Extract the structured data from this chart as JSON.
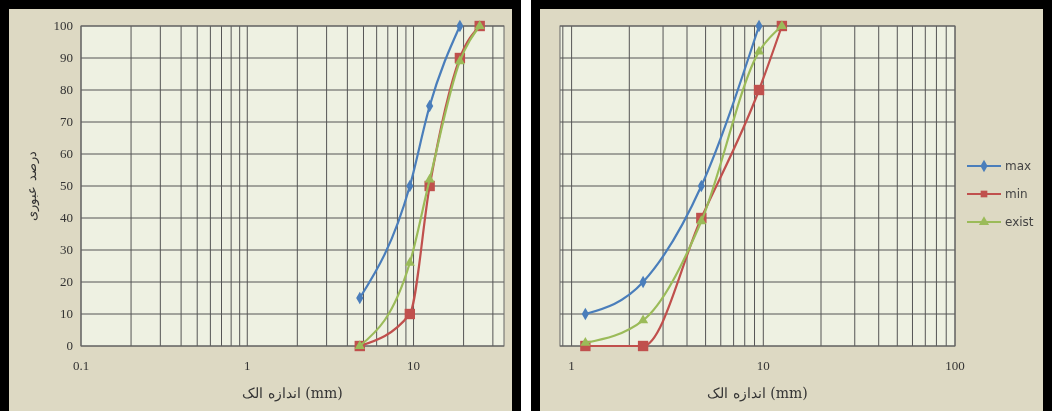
{
  "chart_data": [
    {
      "type": "line",
      "xlabel": "اندازه الک (mm)",
      "ylabel": "درصد عبوری",
      "log": "x",
      "grid": true,
      "xlim": [
        0.1,
        35
      ],
      "xticks": [
        0.1,
        1,
        10
      ],
      "ylim": [
        0,
        100
      ],
      "yticks": [
        0,
        10,
        20,
        30,
        40,
        50,
        60,
        70,
        80,
        90,
        100
      ],
      "legend": false,
      "series": [
        {
          "color": "#4a7ebb",
          "marker": "diamond",
          "x": [
            4.75,
            9.5,
            12.5,
            19
          ],
          "values": [
            15,
            50,
            75,
            100
          ]
        },
        {
          "color": "#c0504d",
          "marker": "square",
          "x": [
            4.75,
            9.5,
            12.5,
            19,
            25
          ],
          "values": [
            0,
            10,
            50,
            90,
            100
          ]
        },
        {
          "color": "#9bbb59",
          "marker": "triangle",
          "x": [
            4.75,
            9.5,
            12.5,
            19,
            25
          ],
          "values": [
            0,
            26,
            52,
            89,
            100
          ]
        }
      ]
    },
    {
      "type": "line",
      "xlabel": "اندازه الک (mm)",
      "log": "x",
      "grid": true,
      "xlim": [
        0.87,
        100
      ],
      "xticks": [
        1,
        10,
        100
      ],
      "ylim": [
        0,
        100
      ],
      "yticks": [
        0,
        10,
        20,
        30,
        40,
        50,
        60,
        70,
        80,
        90,
        100
      ],
      "tick_labels": "x",
      "legend": "right",
      "series": [
        {
          "name": "max",
          "color": "#4a7ebb",
          "marker": "diamond",
          "x": [
            1.18,
            2.36,
            4.75,
            9.5
          ],
          "values": [
            10,
            20,
            50,
            100
          ]
        },
        {
          "name": "min",
          "color": "#c0504d",
          "marker": "square",
          "x": [
            1.18,
            2.36,
            4.75,
            9.5,
            12.5
          ],
          "values": [
            0,
            0,
            40,
            80,
            100
          ]
        },
        {
          "name": "exist",
          "color": "#9bbb59",
          "marker": "triangle",
          "x": [
            1.18,
            2.36,
            4.75,
            9.5,
            12.5
          ],
          "values": [
            1,
            8,
            39,
            92,
            100
          ]
        }
      ]
    }
  ]
}
